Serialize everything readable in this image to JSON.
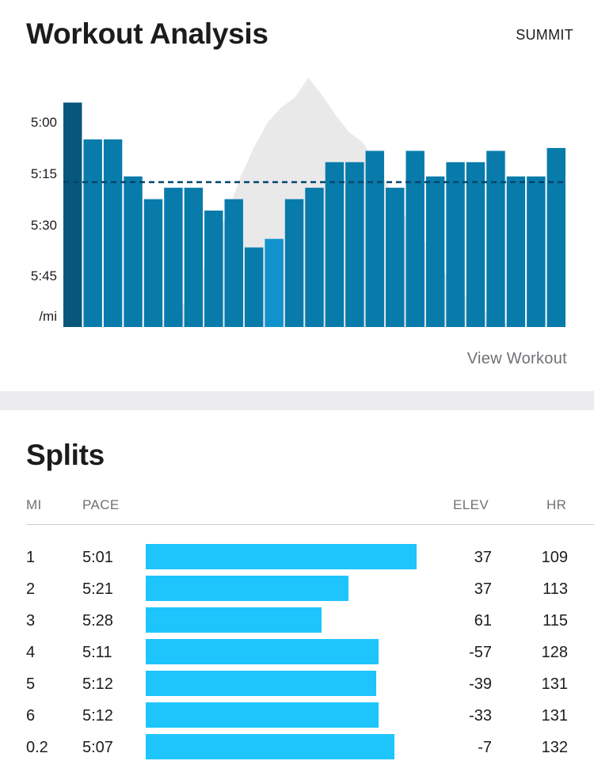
{
  "header": {
    "title": "Workout Analysis",
    "summit_label": "SUMMIT"
  },
  "chart": {
    "y_labels": [
      "5:00",
      "5:15",
      "5:30",
      "5:45",
      "/mi"
    ],
    "y_axis_unit": "/mi",
    "pace_min_sec": 4.6,
    "pace_max_sec": 6.1,
    "average_pace": "5:15",
    "bar_paces": [
      "4:47",
      "5:00",
      "5:00",
      "5:13",
      "5:21",
      "5:17",
      "5:17",
      "5:25",
      "5:21",
      "5:38",
      "5:35",
      "5:21",
      "5:17",
      "5:08",
      "5:08",
      "5:04",
      "5:17",
      "5:04",
      "5:13",
      "5:08",
      "5:08",
      "5:04",
      "5:13",
      "5:13",
      "5:03"
    ],
    "elevation_profile": [
      0,
      0,
      0,
      0,
      0,
      0,
      0,
      0.02,
      0.05,
      0.1,
      0.2,
      0.32,
      0.45,
      0.6,
      0.72,
      0.82,
      0.88,
      0.92,
      1,
      0.93,
      0.85,
      0.78,
      0.74,
      0.65,
      0.55,
      0.45,
      0.4,
      0.3,
      0.22,
      0.15,
      0.1,
      0.06,
      0.03,
      0,
      0,
      0,
      0,
      0
    ],
    "colors": {
      "bar_dark": "#005276",
      "bar_mid": "#0077a8",
      "bar_light": "#0a8ecb",
      "avg_line": "#00466a",
      "elevation": "#e9e9ea"
    }
  },
  "view_workout_label": "View Workout",
  "splits": {
    "title": "Splits",
    "columns": {
      "mi": "MI",
      "pace": "PACE",
      "elev": "ELEV",
      "hr": "HR"
    },
    "bar_color": "#1ec5fd",
    "rows": [
      {
        "mi": "1",
        "pace": "5:01",
        "bar_fraction": 1.0,
        "elev": "37",
        "hr": "109"
      },
      {
        "mi": "2",
        "pace": "5:21",
        "bar_fraction": 0.749,
        "elev": "37",
        "hr": "113"
      },
      {
        "mi": "3",
        "pace": "5:28",
        "bar_fraction": 0.649,
        "elev": "61",
        "hr": "115"
      },
      {
        "mi": "4",
        "pace": "5:11",
        "bar_fraction": 0.86,
        "elev": "-57",
        "hr": "128"
      },
      {
        "mi": "5",
        "pace": "5:12",
        "bar_fraction": 0.85,
        "elev": "-39",
        "hr": "131"
      },
      {
        "mi": "6",
        "pace": "5:12",
        "bar_fraction": 0.86,
        "elev": "-33",
        "hr": "131"
      },
      {
        "mi": "0.2",
        "pace": "5:07",
        "bar_fraction": 0.918,
        "elev": "-7",
        "hr": "132"
      }
    ]
  }
}
